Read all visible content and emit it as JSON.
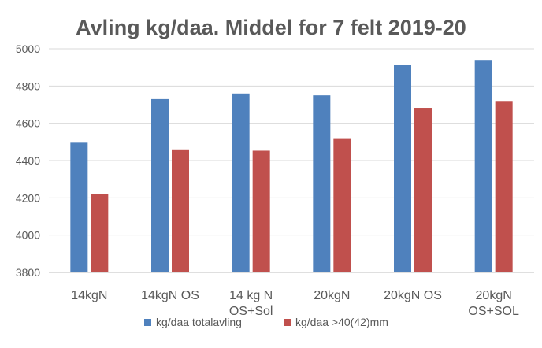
{
  "chart_data": {
    "type": "bar",
    "title": "Avling kg/daa. Middel for 7 felt 2019-20",
    "xlabel": "",
    "ylabel": "",
    "ylim": [
      3800,
      5000
    ],
    "yticks": [
      3800,
      4000,
      4200,
      4400,
      4600,
      4800,
      5000
    ],
    "grid": true,
    "legend_position": "bottom",
    "categories": [
      [
        "14kgN"
      ],
      [
        "14kgN OS"
      ],
      [
        "14 kg N",
        "OS+Sol"
      ],
      [
        "20kgN"
      ],
      [
        "20kgN OS"
      ],
      [
        "20kgN",
        "OS+SOL"
      ]
    ],
    "series": [
      {
        "name": "kg/daa totalavling",
        "color": "#4F81BD",
        "values": [
          4500,
          4730,
          4760,
          4750,
          4915,
          4940
        ]
      },
      {
        "name": "kg/daa >40(42)mm",
        "color": "#C0504D",
        "values": [
          4222,
          4460,
          4453,
          4520,
          4683,
          4720
        ]
      }
    ]
  }
}
